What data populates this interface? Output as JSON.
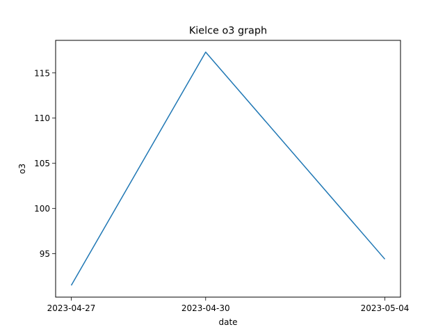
{
  "chart_data": {
    "type": "line",
    "title": "Kielce o3 graph",
    "xlabel": "date",
    "ylabel": "o3",
    "x": [
      "2023-04-27",
      "2023-04-30",
      "2023-05-04"
    ],
    "series": [
      {
        "values": [
          91.5,
          117.3,
          94.4
        ],
        "color": "#1f77b4"
      }
    ],
    "yticks": [
      "95",
      "100",
      "105",
      "110",
      "115"
    ],
    "ylim": [
      90.2,
      118.6
    ],
    "grid": false,
    "legend": "none"
  }
}
